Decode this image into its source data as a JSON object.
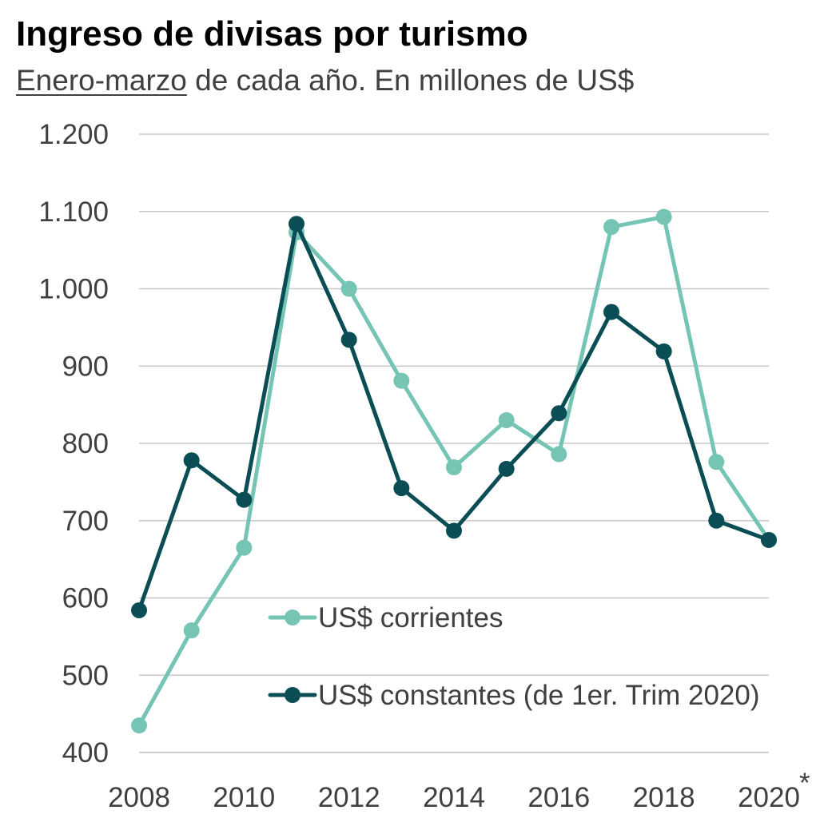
{
  "chart_data": {
    "type": "line",
    "title": "Ingreso de divisas por turismo",
    "subtitle_underlined": "Enero-marzo",
    "subtitle_rest": " de cada año. En millones de US$",
    "x": [
      2008,
      2009,
      2010,
      2011,
      2012,
      2013,
      2014,
      2015,
      2016,
      2017,
      2018,
      2019,
      2020
    ],
    "x_tick_labels": [
      "2008",
      "2010",
      "2012",
      "2014",
      "2016",
      "2018",
      "2020"
    ],
    "x_note": "*",
    "y_tick_labels": [
      "400",
      "500",
      "600",
      "700",
      "800",
      "900",
      "1.000",
      "1.100",
      "1.200"
    ],
    "ylim": [
      400,
      1200
    ],
    "grid": true,
    "legend_position": "center",
    "series": [
      {
        "name": "US$ corrientes",
        "color": "#76c5b4",
        "values": [
          435,
          558,
          665,
          1073,
          1000,
          881,
          769,
          830,
          786,
          1080,
          1093,
          776,
          675
        ]
      },
      {
        "name": "US$ constantes (de 1er. Trim 2020)",
        "color": "#0a4d55",
        "values": [
          584,
          778,
          727,
          1084,
          934,
          742,
          687,
          767,
          839,
          970,
          919,
          700,
          675
        ]
      }
    ]
  }
}
